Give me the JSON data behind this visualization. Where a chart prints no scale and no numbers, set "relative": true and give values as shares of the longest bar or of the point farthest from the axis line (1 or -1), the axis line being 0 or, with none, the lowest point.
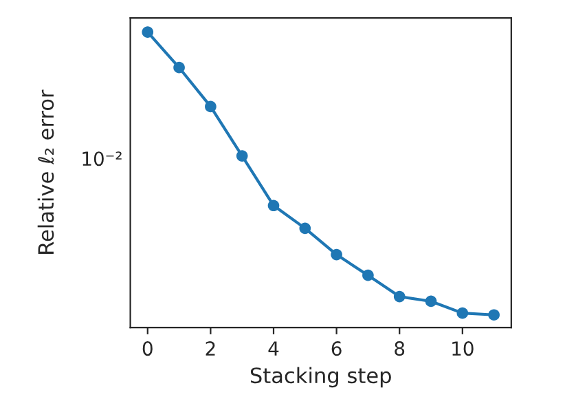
{
  "chart_data": {
    "type": "line",
    "xlabel": "Stacking step",
    "ylabel": "Relative ℓ₂ error",
    "relative": true,
    "annotations": [
      "10⁻²"
    ],
    "x": [
      0,
      1,
      2,
      3,
      4,
      5,
      6,
      7,
      8,
      9,
      10,
      11
    ],
    "series": [
      {
        "color": "#1f77b4",
        "values": [
          1,
          0.88,
          0.748,
          0.581,
          0.413,
          0.336,
          0.247,
          0.177,
          0.105,
          0.089,
          0.049,
          0.043
        ]
      }
    ],
    "marker": "circle",
    "line_style": "solid",
    "grid": false,
    "legend": false,
    "xlim": [
      -0.55,
      11.55
    ],
    "xticks": [
      0,
      2,
      4,
      6,
      8,
      10
    ]
  }
}
